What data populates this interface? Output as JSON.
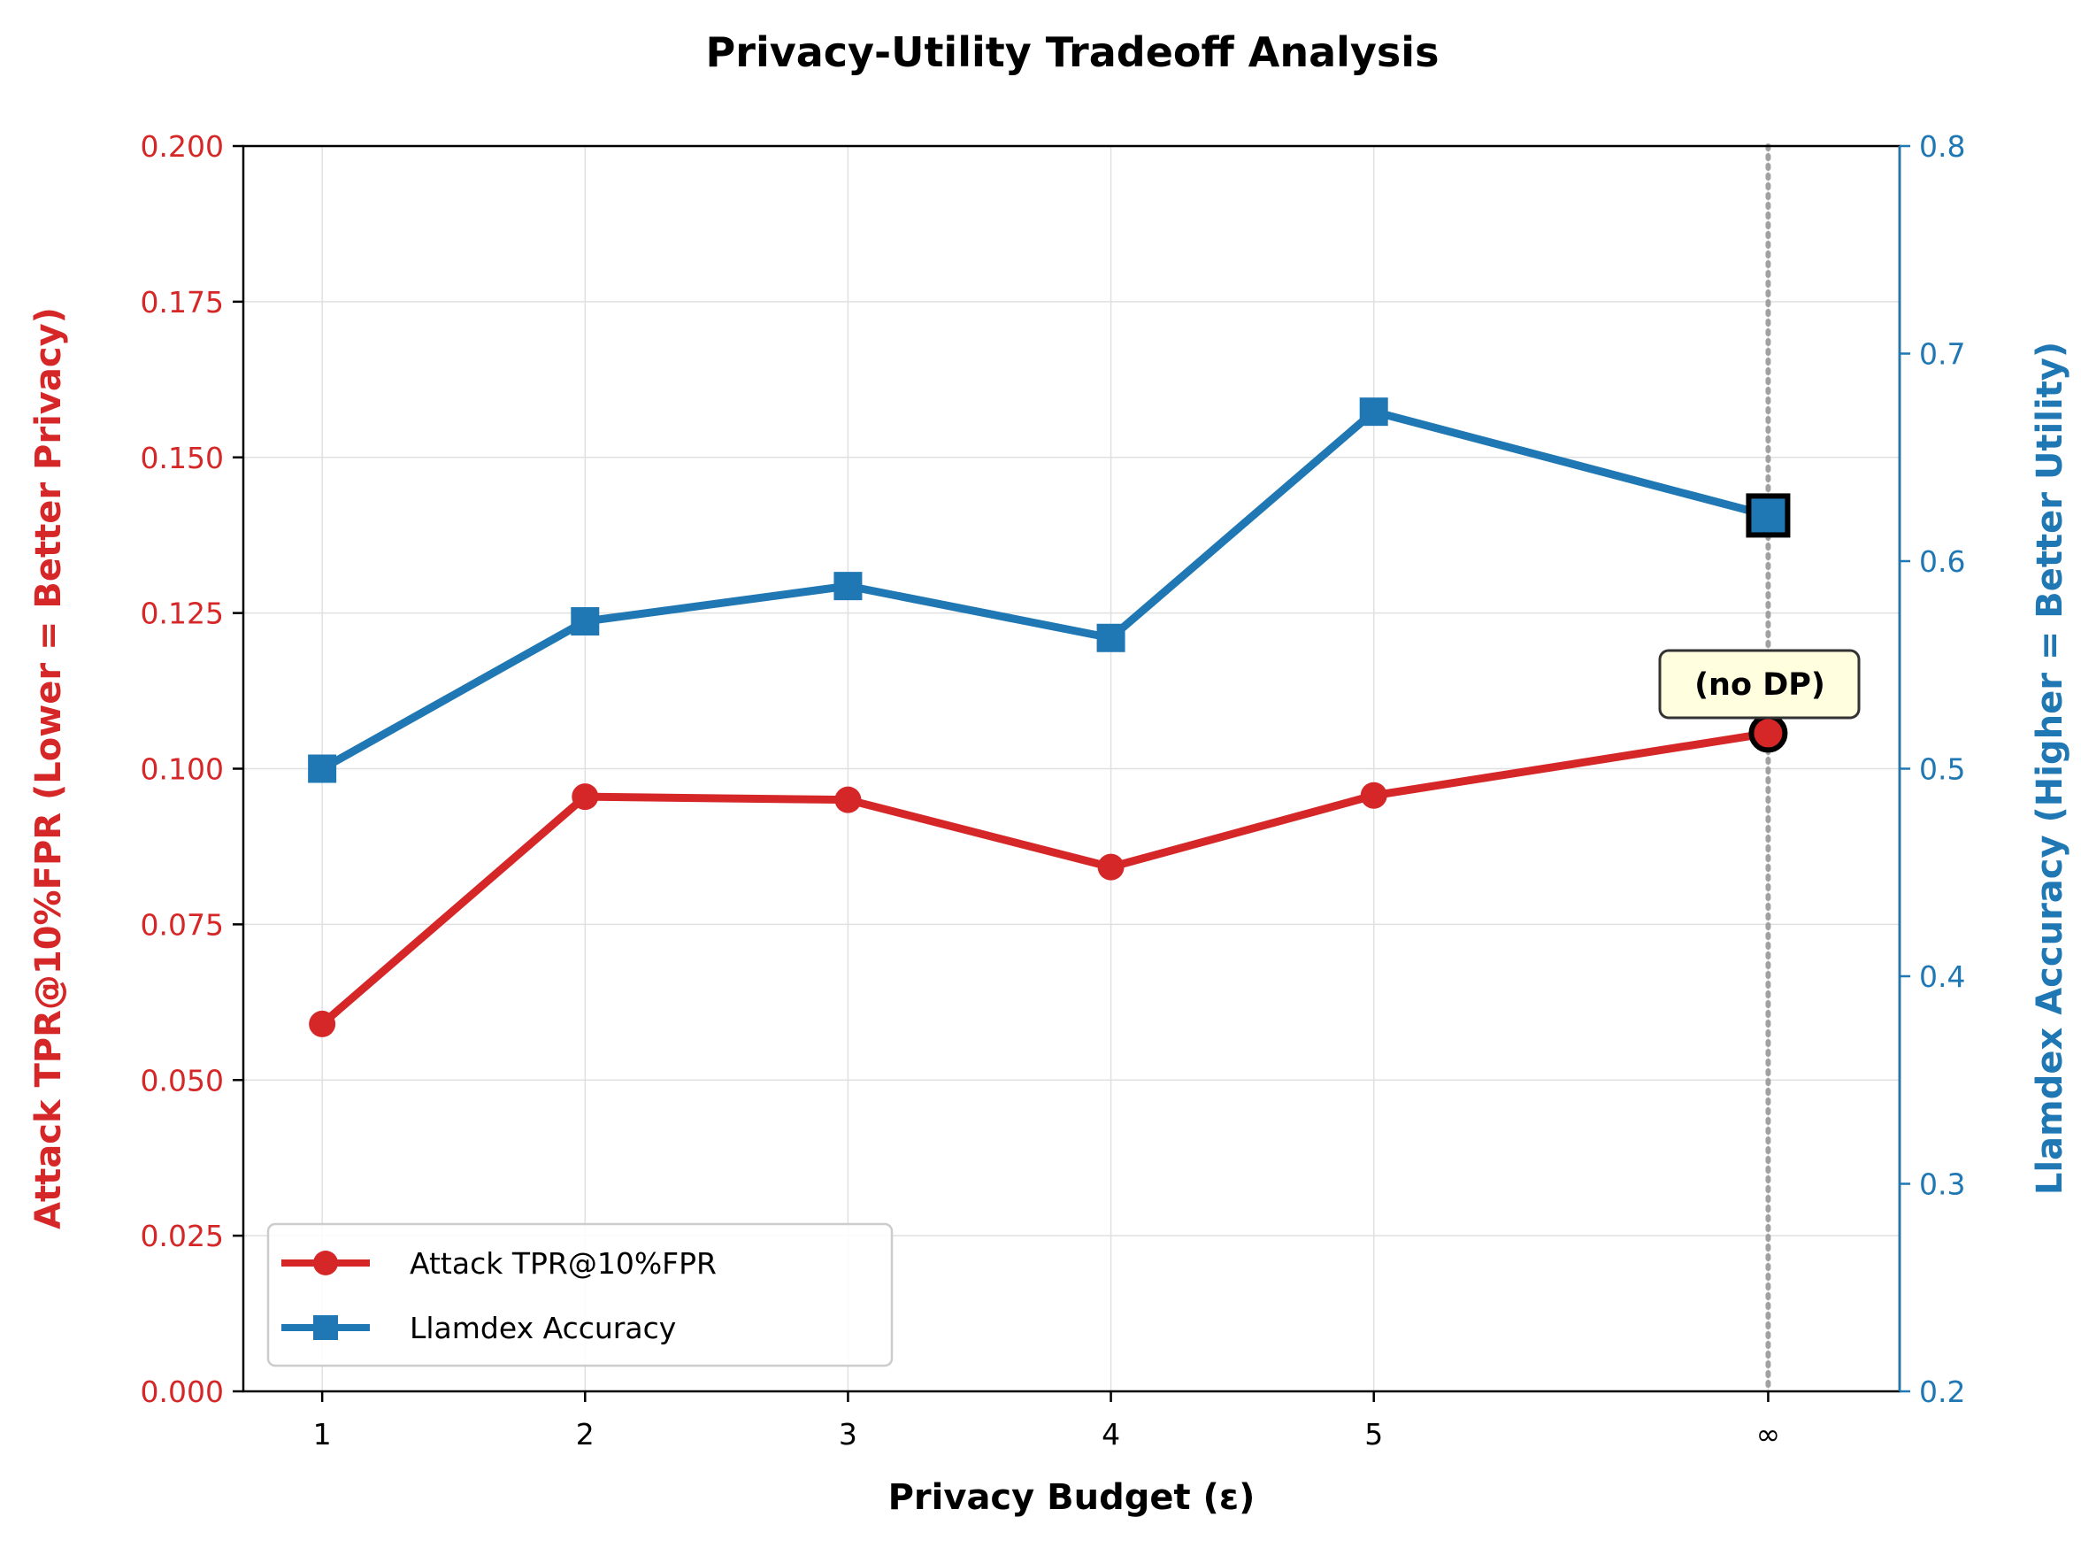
{
  "chart_data": {
    "type": "line",
    "title": "Privacy-Utility Tradeoff Analysis",
    "xlabel": "Privacy Budget (ε)",
    "ylabel_left": "Attack TPR@10%FPR (Lower = Better Privacy)",
    "ylabel_right": "Llamdex Accuracy (Higher = Better Utility)",
    "categories": [
      "1",
      "2",
      "3",
      "4",
      "5",
      "∞"
    ],
    "x": [
      1,
      2,
      3,
      4,
      5,
      6.5
    ],
    "xlim": [
      0.7,
      7.0
    ],
    "ylim_left": [
      0.0,
      0.2
    ],
    "ylim_right": [
      0.2,
      0.8
    ],
    "yticks_left": [
      "0.000",
      "0.025",
      "0.050",
      "0.075",
      "0.100",
      "0.125",
      "0.150",
      "0.175",
      "0.200"
    ],
    "yticks_right": [
      "0.2",
      "0.3",
      "0.4",
      "0.5",
      "0.6",
      "0.7",
      "0.8"
    ],
    "grid": true,
    "series": [
      {
        "name": "Attack TPR@10%FPR",
        "axis": "left",
        "color": "#d62728",
        "marker": "circle",
        "values": [
          0.059,
          0.0955,
          0.095,
          0.0842,
          0.0957,
          0.1057
        ]
      },
      {
        "name": "Llamdex Accuracy",
        "axis": "right",
        "color": "#1f77b4",
        "marker": "square",
        "values": [
          0.5,
          0.571,
          0.588,
          0.563,
          0.672,
          0.622
        ]
      }
    ],
    "annotation": {
      "text": "(no DP)",
      "at_category": "∞"
    },
    "reference_line": {
      "at_category": "∞",
      "style": "dotted",
      "color": "#999999"
    },
    "legend": {
      "position": "lower-left",
      "entries": [
        "Attack TPR@10%FPR",
        "Llamdex Accuracy"
      ]
    }
  }
}
